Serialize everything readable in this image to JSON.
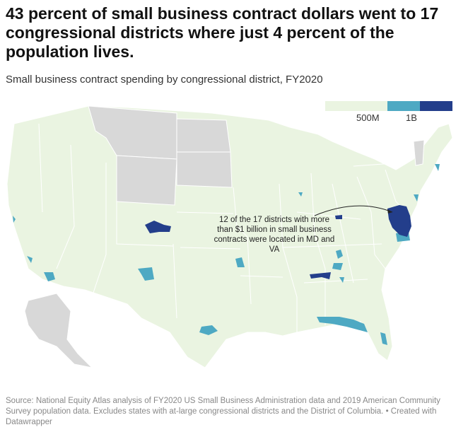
{
  "title": "43 percent of small business contract dollars went to 17 congressional districts where just 4 percent of the population lives.",
  "subtitle": "Small business contract spending by congressional district, FY2020",
  "legend": {
    "labels": [
      "500M",
      "1B"
    ],
    "colors": {
      "low": "#eaf4e1",
      "mid": "#4ea9c3",
      "high": "#233e8b",
      "missing": "#d8d8d8"
    }
  },
  "annotation": "12 of the 17 districts with more than $1 billion in small business contracts were located in MD and VA",
  "source": "Source: National Equity Atlas analysis of FY2020 US Small Business Administration data and 2019 American Community Survey population data. Excludes states with at-large congressional districts and the District of Columbia. • Created with Datawrapper"
}
